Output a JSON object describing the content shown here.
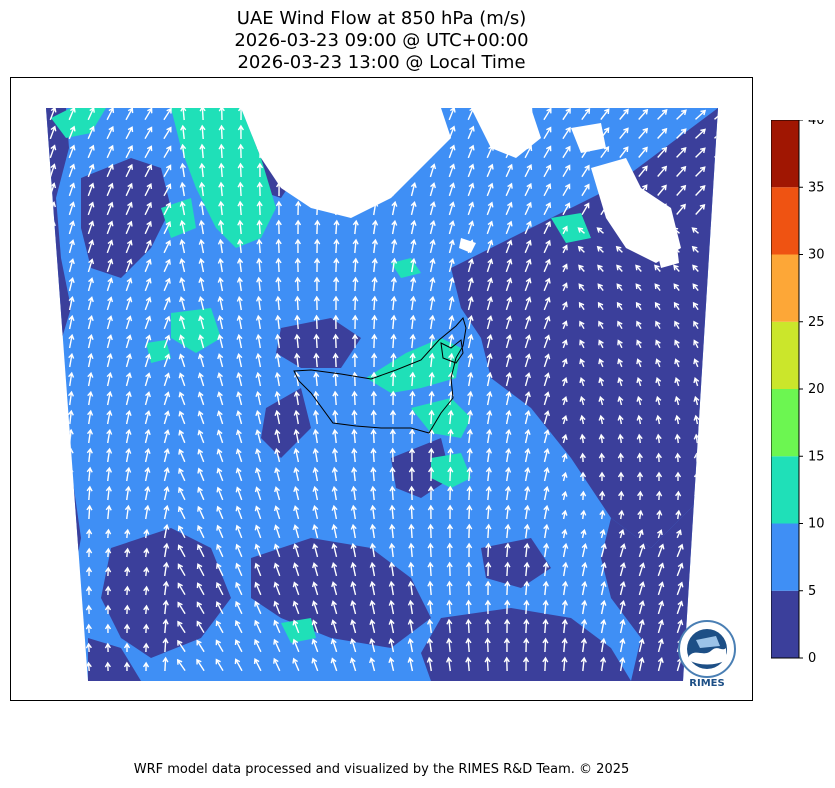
{
  "title": {
    "line1": "UAE Wind Flow at 850 hPa (m/s)",
    "line2": "2026-03-23 09:00 @ UTC+00:00",
    "line3": "2026-03-23 13:00 @ Local Time"
  },
  "colorbar": {
    "levels": [
      0,
      5,
      10,
      15,
      20,
      25,
      30,
      35,
      40
    ],
    "colors": [
      "#3b3f9b",
      "#3f8ff5",
      "#1fe0b8",
      "#6cf651",
      "#cbe62b",
      "#fda737",
      "#ef5312",
      "#a01602"
    ],
    "labels": [
      "0",
      "5",
      "10",
      "15",
      "20",
      "25",
      "30",
      "35",
      "40"
    ]
  },
  "map": {
    "dominant_speed_band": "5-10",
    "arrow_color": "#ffffff",
    "coastline_color": "#000000",
    "missing_color": "#ffffff"
  },
  "logo": {
    "text": "RIMES",
    "ring_text": "Regional Integrated Multi-Hazard Early Warning System",
    "icon": "rimes-globe-logo"
  },
  "credit": "WRF model data processed and visualized by the RIMES R&D Team. © 2025"
}
